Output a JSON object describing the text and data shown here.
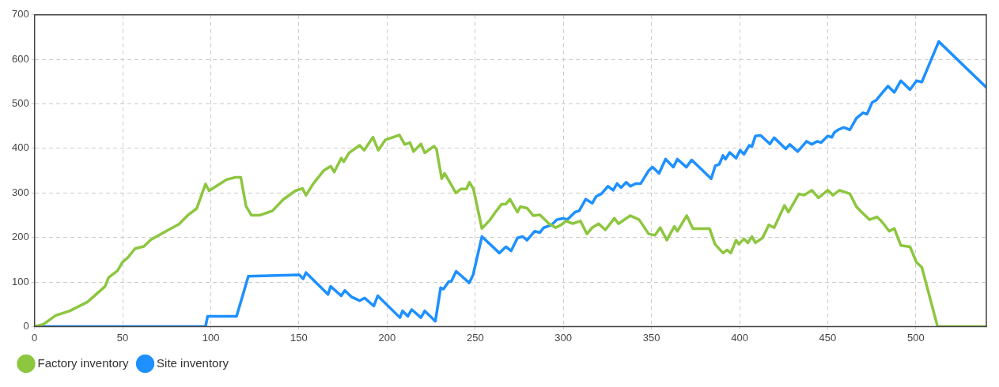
{
  "chart_data": {
    "type": "line",
    "xlim": [
      0,
      540
    ],
    "xticks": [
      0,
      50,
      100,
      150,
      200,
      250,
      300,
      350,
      400,
      450,
      500
    ],
    "ylim": [
      0,
      700
    ],
    "yticks": [
      0,
      100,
      200,
      300,
      400,
      500,
      600,
      700
    ],
    "grid": true,
    "legend": "bottom left",
    "marker": "none",
    "line_style": "solid",
    "series": [
      {
        "name": "Factory inventory",
        "color": "#8dc63f",
        "x": [
          0,
          5,
          12,
          20,
          30,
          40,
          42,
          47,
          50,
          53,
          57,
          62,
          66,
          75,
          82,
          87,
          92,
          97,
          99,
          105,
          109,
          114,
          117,
          120,
          123,
          128,
          135,
          141,
          148,
          152,
          154,
          158,
          164,
          168,
          170,
          174,
          175.4,
          178.4,
          184.4,
          187,
          192,
          195,
          199,
          207,
          210,
          213,
          215,
          219.2,
          221.4,
          226.6,
          228,
          231,
          232.6,
          236,
          239,
          242,
          245,
          246.7,
          249,
          253.8,
          258.5,
          261.5,
          265,
          267.4,
          269.7,
          274,
          275.6,
          279.4,
          283,
          286.7,
          291.9,
          295.6,
          298.6,
          301.6,
          305.3,
          309.7,
          313.4,
          316.4,
          320,
          323.8,
          329,
          331.3,
          338,
          343,
          348.4,
          352,
          355,
          358.7,
          363,
          364.7,
          370,
          373.5,
          383,
          386,
          390.6,
          392.9,
          395,
          398,
          399.6,
          402.5,
          404.7,
          407,
          409,
          413,
          416.6,
          419.6,
          425.5,
          427.7,
          433.7,
          436.6,
          441,
          444.8,
          450,
          453,
          456.7,
          462.6,
          466.3,
          470,
          473.7,
          478,
          480.4,
          484.9,
          487.8,
          491.5,
          496.7,
          500.4,
          503.4,
          512.3,
          540
        ],
        "values": [
          0,
          5,
          25,
          35,
          55,
          90,
          110,
          125,
          145,
          155,
          175,
          180,
          195,
          215,
          230,
          250,
          265,
          320,
          305,
          320,
          330,
          335,
          335,
          270,
          250,
          250,
          260,
          285,
          305,
          310,
          295,
          320,
          350,
          360,
          347,
          378,
          370,
          390,
          407,
          396,
          425,
          396,
          419,
          430,
          409,
          413,
          393,
          410,
          390,
          405,
          399,
          332,
          344,
          321,
          300,
          309,
          309,
          324,
          309,
          220,
          240,
          257,
          275,
          275,
          286,
          257,
          269,
          266,
          249,
          251,
          231,
          222,
          228,
          237,
          231,
          237,
          208,
          222,
          231,
          217,
          243,
          231,
          249,
          240,
          208,
          205,
          222,
          194,
          225,
          214,
          249,
          220,
          220,
          185,
          165,
          172,
          165,
          194,
          185,
          197,
          188,
          202,
          188,
          199,
          228,
          222,
          272,
          257,
          298,
          295,
          306,
          289,
          306,
          295,
          306,
          298,
          269,
          254,
          240,
          246,
          237,
          214,
          220,
          182,
          179,
          144,
          133,
          0,
          0
        ]
      },
      {
        "name": "Site inventory",
        "color": "#1e90ff",
        "x": [
          0,
          97,
          98.2,
          114.6,
          121.3,
          150.2,
          152.4,
          154,
          166.5,
          168,
          174,
          176,
          180,
          184.4,
          187.3,
          192.5,
          194.7,
          207.3,
          208.8,
          211.8,
          214,
          219.2,
          221.4,
          227.4,
          230.4,
          232,
          235,
          236.4,
          239.2,
          246.6,
          248.8,
          253.8,
          263.7,
          267.4,
          270.4,
          274,
          277,
          279.4,
          283.7,
          286.7,
          288.9,
          293.3,
          296.3,
          300,
          302.3,
          306.7,
          309,
          312.7,
          316.4,
          318.6,
          321.6,
          325.3,
          328.3,
          330.5,
          332.8,
          335.7,
          338,
          341,
          343.9,
          348.4,
          350.6,
          354.3,
          358,
          362.4,
          364.7,
          369.8,
          372.8,
          383.9,
          386.2,
          388.4,
          390.6,
          392,
          394.4,
          398,
          400.3,
          402.5,
          405.5,
          407,
          409,
          412,
          417.2,
          419.6,
          426.2,
          428.5,
          433,
          438,
          441,
          444,
          446.3,
          450,
          452.3,
          453.8,
          456,
          459,
          462.6,
          466.3,
          470,
          472.3,
          475.2,
          477.4,
          481.2,
          484.2,
          487.8,
          491.5,
          496.7,
          500.4,
          503.4,
          513,
          540
        ],
        "values": [
          0,
          0,
          23,
          23,
          113,
          116,
          107,
          121,
          72,
          90,
          69,
          81,
          66,
          58,
          64,
          46,
          69,
          20,
          35,
          23,
          38,
          20,
          35,
          12,
          87,
          84,
          101,
          101,
          124,
          98,
          116,
          202,
          165,
          179,
          170,
          199,
          202,
          194,
          214,
          211,
          222,
          228,
          240,
          243,
          240,
          257,
          260,
          286,
          277,
          292,
          298,
          315,
          306,
          321,
          312,
          324,
          315,
          321,
          321,
          350,
          358,
          344,
          376,
          358,
          376,
          358,
          374,
          332,
          361,
          364,
          384,
          376,
          391,
          378,
          396,
          387,
          407,
          404,
          428,
          429,
          410,
          424,
          399,
          409,
          393,
          416,
          409,
          416,
          413,
          428,
          425,
          436,
          442,
          447,
          442,
          468,
          480,
          477,
          503,
          508,
          526,
          540,
          526,
          552,
          532,
          552,
          549,
          640,
          537
        ]
      }
    ]
  }
}
